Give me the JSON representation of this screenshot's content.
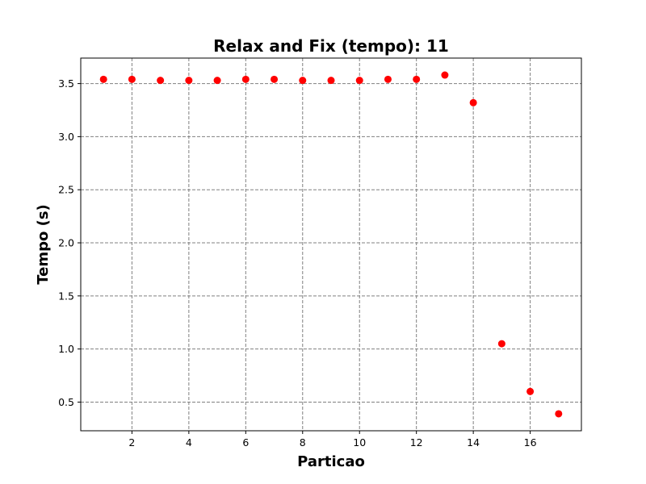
{
  "chart_data": {
    "type": "scatter",
    "title": "Relax and Fix (tempo): 11",
    "xlabel": "Particao",
    "ylabel": "Tempo (s)",
    "xlim": [
      0.2,
      17.8
    ],
    "ylim": [
      0.23,
      3.74
    ],
    "x_ticks": [
      2,
      4,
      6,
      8,
      10,
      12,
      14,
      16
    ],
    "y_ticks": [
      0.5,
      1.0,
      1.5,
      2.0,
      2.5,
      3.0,
      3.5
    ],
    "x_tick_labels": [
      "2",
      "4",
      "6",
      "8",
      "10",
      "12",
      "14",
      "16"
    ],
    "y_tick_labels": [
      "0.5",
      "1.0",
      "1.5",
      "2.0",
      "2.5",
      "3.0",
      "3.5"
    ],
    "grid": true,
    "grid_color": "#808080",
    "marker_color": "#ff0000",
    "series": [
      {
        "x": [
          1,
          2,
          3,
          4,
          5,
          6,
          7,
          8,
          9,
          10,
          11,
          12,
          13,
          14,
          15,
          16,
          17
        ],
        "y": [
          3.54,
          3.54,
          3.53,
          3.53,
          3.53,
          3.54,
          3.54,
          3.53,
          3.53,
          3.53,
          3.54,
          3.54,
          3.58,
          3.32,
          1.05,
          0.6,
          0.39
        ]
      }
    ]
  }
}
